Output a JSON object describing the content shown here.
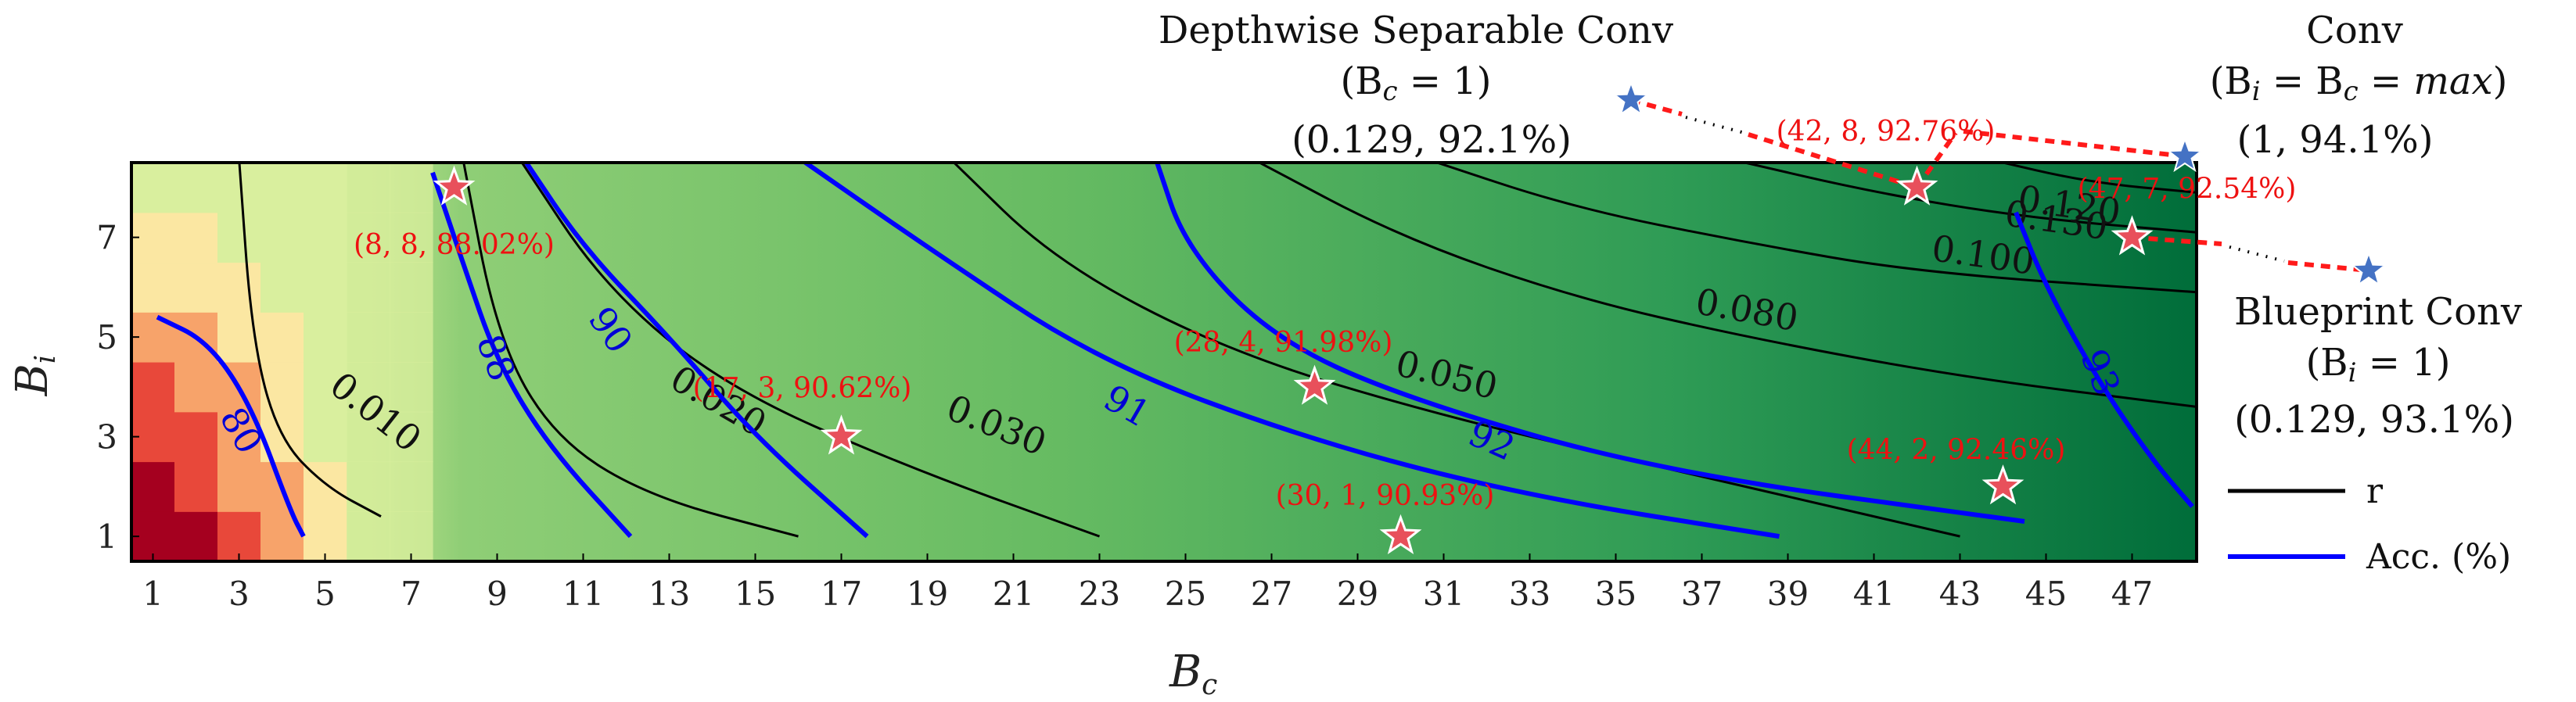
{
  "chart_data": {
    "type": "heatmap",
    "xlabel": "B",
    "xlabel_sub": "c",
    "ylabel": "B",
    "ylabel_sub": "i",
    "x_range": [
      1,
      48
    ],
    "y_range": [
      1,
      8
    ],
    "xticks": [
      1,
      3,
      5,
      7,
      9,
      11,
      13,
      15,
      17,
      19,
      21,
      23,
      25,
      27,
      29,
      31,
      33,
      35,
      37,
      39,
      41,
      43,
      45,
      47
    ],
    "yticks": [
      1,
      3,
      5,
      7
    ],
    "colormap": [
      "#a5001f",
      "#e8483a",
      "#f7a36a",
      "#fbe7a2",
      "#d9ef9e",
      "#7dc668",
      "#2f9b53",
      "#006837"
    ],
    "r_contours": {
      "color": "#000000",
      "levels": [
        "0.010",
        "0.020",
        "0.030",
        "0.050",
        "0.080",
        "0.100",
        "0.120",
        "0.130"
      ]
    },
    "acc_contours": {
      "color": "#0000ff",
      "levels": [
        "80",
        "88",
        "90",
        "91",
        "92",
        "93"
      ]
    },
    "points": [
      {
        "label": "(8, 8, 88.02%)",
        "x": 8,
        "y": 8
      },
      {
        "label": "(17, 3, 90.62%)",
        "x": 17,
        "y": 3
      },
      {
        "label": "(28, 4, 91.98%)",
        "x": 28,
        "y": 4
      },
      {
        "label": "(30, 1, 90.93%)",
        "x": 30,
        "y": 1
      },
      {
        "label": "(42, 8, 92.76%)",
        "x": 42,
        "y": 8
      },
      {
        "label": "(47, 7, 92.54%)",
        "x": 47,
        "y": 7
      },
      {
        "label": "(44, 2, 92.46%)",
        "x": 44,
        "y": 2
      }
    ],
    "annotations": {
      "depthwise": {
        "title": "Depthwise Separable Conv",
        "cond": "(B",
        "cond_sub": "c",
        "cond_rest": " = 1)",
        "value": "(0.129, 92.1%)"
      },
      "conv": {
        "title": "Conv",
        "cond_a": "(B",
        "cond_a_sub": "i",
        "cond_b": " = B",
        "cond_b_sub": "c",
        "cond_c": " = ",
        "cond_max": "max",
        "cond_end": ")",
        "value": "(1, 94.1%)"
      },
      "blueprint": {
        "title": "Blueprint Conv",
        "cond": "(B",
        "cond_sub": "i",
        "cond_rest": " = 1)",
        "value": "(0.129, 93.1%)"
      }
    },
    "legend": [
      {
        "label": "r",
        "color": "#000000"
      },
      {
        "label": "Acc. (%)",
        "color": "#0000ff"
      }
    ],
    "legend_position": "right",
    "grid": false
  }
}
